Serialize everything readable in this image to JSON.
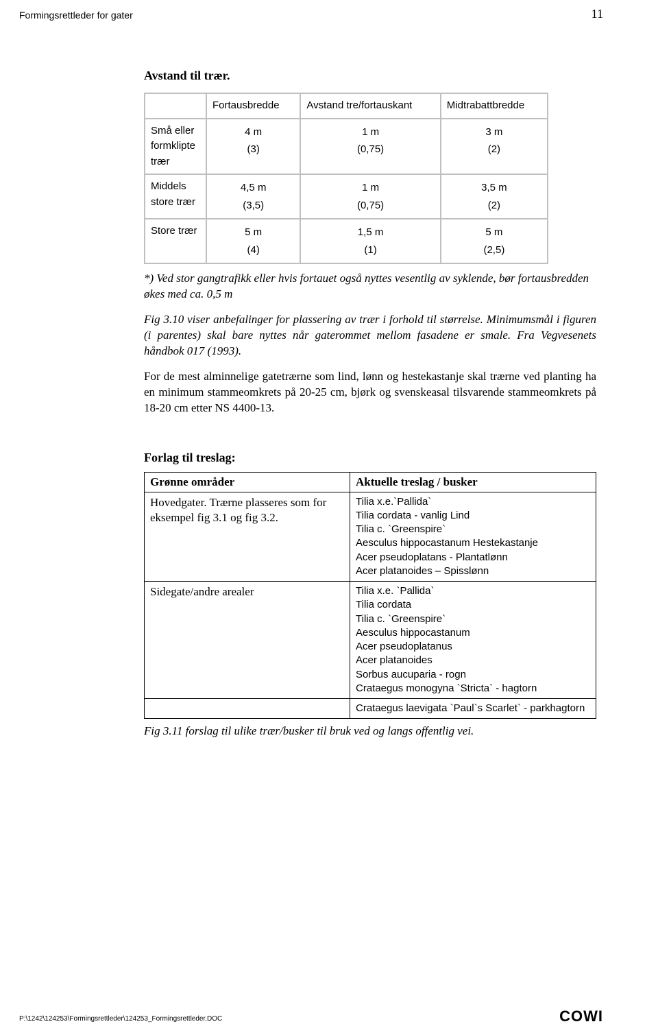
{
  "header": {
    "left": "Formingsrettleder for gater",
    "pageNumber": "11"
  },
  "section1": {
    "title": "Avstand til trær.",
    "table": {
      "headers": [
        "",
        "Fortausbredde",
        "Avstand tre/fortauskant",
        "Midtrabattbredde"
      ],
      "rows": [
        {
          "label": "Små eller formklipte trær",
          "cells": [
            {
              "main": "4 m",
              "sub": "(3)"
            },
            {
              "main": "1 m",
              "sub": "(0,75)"
            },
            {
              "main": "3 m",
              "sub": "(2)"
            }
          ]
        },
        {
          "label": "Middels store trær",
          "cells": [
            {
              "main": "4,5 m",
              "sub": "(3,5)"
            },
            {
              "main": "1 m",
              "sub": "(0,75)"
            },
            {
              "main": "3,5 m",
              "sub": "(2)"
            }
          ]
        },
        {
          "label": "Store trær",
          "cells": [
            {
              "main": "5 m",
              "sub": "(4)"
            },
            {
              "main": "1,5 m",
              "sub": "(1)"
            },
            {
              "main": "5 m",
              "sub": "(2,5)"
            }
          ]
        }
      ]
    },
    "footnote": "*) Ved stor gangtrafikk eller hvis fortauet også nyttes vesentlig av syklende, bør fortausbredden økes med ca. 0,5 m",
    "caption": "Fig 3.10 viser anbefalinger for plassering av trær i forhold til størrelse. Minimumsmål i figuren (i parentes) skal bare nyttes når gaterommet mellom fasadene er smale. Fra Vegvesenets håndbok 017 (1993).",
    "para": "For de mest alminnelige gatetrærne som lind, lønn og hestekastanje skal trærne ved planting ha en minimum stammeomkrets på 20-25 cm, bjørk og svenskeasal tilsvarende stammeomkrets på 18-20 cm etter NS 4400-13."
  },
  "section2": {
    "title": "Forlag til treslag:",
    "table": {
      "headers": [
        "Grønne områder",
        "Aktuelle treslag / busker"
      ],
      "rows": [
        {
          "left": "Hovedgater. Trærne plasseres som for eksempel fig 3.1 og fig 3.2.",
          "right": "Tilia x.e.`Pallida`\nTilia cordata - vanlig Lind\nTilia c. `Greenspire`\nAesculus hippocastanum Hestekastanje\nAcer pseudoplatans  - Plantatlønn\nAcer platanoides – Spisslønn"
        },
        {
          "left": "Sidegate/andre arealer",
          "right": "Tilia x.e.  `Pallida`\nTilia cordata\nTilia c. `Greenspire`\nAesculus hippocastanum\nAcer pseudoplatanus\nAcer platanoides\nSorbus aucuparia - rogn\nCrataegus monogyna `Stricta` - hagtorn"
        },
        {
          "left": "",
          "right": "Crataegus laevigata `Paul`s Scarlet` - parkhagtorn"
        }
      ]
    },
    "caption": "Fig 3.11 forslag til ulike trær/busker til bruk ved og langs offentlig vei."
  },
  "footer": {
    "path": "P:\\1242\\124253\\Formingsrettleder\\124253_Formingsrettleder.DOC",
    "logo": "COWI"
  }
}
